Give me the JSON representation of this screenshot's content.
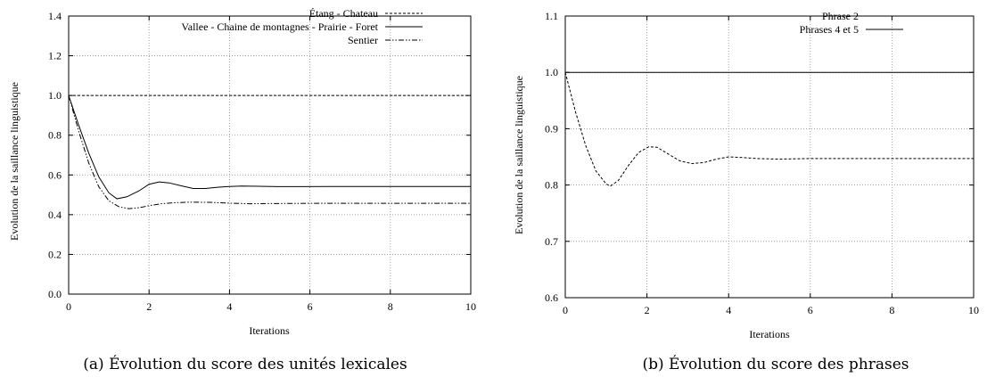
{
  "figures": [
    {
      "caption": "(a) Évolution du score des unités lexicales",
      "chart_data": {
        "type": "line",
        "xlabel": "Iterations",
        "ylabel": "Evolution de la saillance linguistique",
        "xlim": [
          0,
          10
        ],
        "ylim": [
          0,
          1.4
        ],
        "xticks": [
          0,
          2,
          4,
          6,
          8,
          10
        ],
        "yticks": [
          0,
          0.2,
          0.4,
          0.6,
          0.8,
          1.0,
          1.2,
          1.4
        ],
        "xtick_labels": [
          "0",
          "2",
          "4",
          "6",
          "8",
          "10"
        ],
        "ytick_labels": [
          "0.0",
          "0.2",
          "0.4",
          "0.6",
          "0.8",
          "1.0",
          "1.2",
          "1.4"
        ],
        "grid": true,
        "legend_position": "top-right",
        "series": [
          {
            "name": "Étang - Chateau",
            "style": "dashed",
            "x": [
              0,
              10
            ],
            "y": [
              1.0,
              1.0
            ]
          },
          {
            "name": "Vallee - Chaine de montagnes - Prairie - Foret",
            "style": "solid",
            "x": [
              0,
              0.25,
              0.5,
              0.75,
              1.0,
              1.2,
              1.45,
              1.75,
              2.0,
              2.25,
              2.5,
              2.8,
              3.1,
              3.4,
              3.7,
              4.0,
              4.3,
              4.7,
              5.2,
              5.8,
              6.5,
              7.5,
              8.5,
              10
            ],
            "y": [
              1.0,
              0.85,
              0.71,
              0.59,
              0.51,
              0.48,
              0.49,
              0.52,
              0.553,
              0.565,
              0.56,
              0.545,
              0.532,
              0.532,
              0.538,
              0.542,
              0.544,
              0.543,
              0.541,
              0.541,
              0.542,
              0.542,
              0.542,
              0.542
            ]
          },
          {
            "name": "Sentier",
            "style": "dash-dot-dot",
            "x": [
              0,
              0.25,
              0.5,
              0.75,
              1.0,
              1.25,
              1.5,
              1.75,
              2.0,
              2.3,
              2.6,
              3.0,
              3.5,
              4.0,
              4.5,
              5.0,
              6.0,
              7.0,
              8.0,
              10
            ],
            "y": [
              1.0,
              0.82,
              0.66,
              0.54,
              0.47,
              0.44,
              0.43,
              0.435,
              0.445,
              0.455,
              0.46,
              0.463,
              0.462,
              0.458,
              0.455,
              0.456,
              0.457,
              0.457,
              0.457,
              0.457
            ]
          }
        ]
      }
    },
    {
      "caption": "(b) Évolution du score des phrases",
      "chart_data": {
        "type": "line",
        "xlabel": "Iterations",
        "ylabel": "Evolution de la saillance linguistique",
        "xlim": [
          0,
          10
        ],
        "ylim": [
          0.6,
          1.1
        ],
        "xticks": [
          0,
          2,
          4,
          6,
          8,
          10
        ],
        "yticks": [
          0.6,
          0.7,
          0.8,
          0.9,
          1.0,
          1.1
        ],
        "xtick_labels": [
          "0",
          "2",
          "4",
          "6",
          "8",
          "10"
        ],
        "ytick_labels": [
          "0.6",
          "0.7",
          "0.8",
          "0.9",
          "1.0",
          "1.1"
        ],
        "grid": true,
        "legend_position": "top-right",
        "series": [
          {
            "name": "Phrase 2",
            "style": "dashed",
            "x": [
              0,
              0.25,
              0.5,
              0.75,
              1.0,
              1.1,
              1.3,
              1.55,
              1.8,
              2.05,
              2.25,
              2.5,
              2.8,
              3.1,
              3.4,
              3.7,
              4.0,
              4.3,
              4.7,
              5.2,
              6.0,
              7.0,
              8.0,
              10
            ],
            "y": [
              1.0,
              0.93,
              0.87,
              0.825,
              0.802,
              0.798,
              0.808,
              0.835,
              0.858,
              0.868,
              0.867,
              0.856,
              0.843,
              0.838,
              0.84,
              0.846,
              0.85,
              0.849,
              0.847,
              0.846,
              0.847,
              0.847,
              0.847,
              0.847
            ]
          },
          {
            "name": "Phrases 4 et 5",
            "style": "solid",
            "x": [
              0,
              10
            ],
            "y": [
              1.0,
              1.0
            ]
          }
        ]
      }
    }
  ]
}
